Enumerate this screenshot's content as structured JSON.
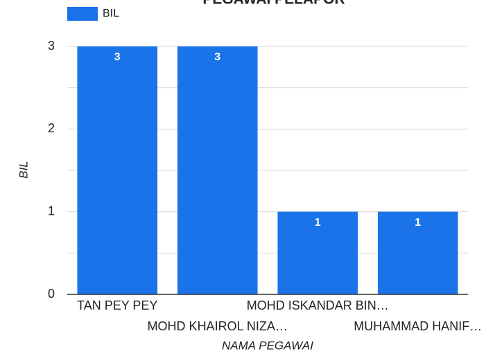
{
  "chart_data": {
    "type": "bar",
    "title": "PEGAWAI PELAPOR",
    "categories": [
      "TAN PEY PEY",
      "MOHD KHAIROL NIZA…",
      "MOHD ISKANDAR BIN…",
      "MUHAMMAD HANIF…"
    ],
    "series": [
      {
        "name": "BIL",
        "color": "#1a73e8",
        "values": [
          3,
          3,
          1,
          1
        ]
      }
    ],
    "xlabel": "NAMA PEGAWAI",
    "ylabel": "BIL",
    "ylim": [
      0,
      3
    ],
    "yticks": [
      0,
      1,
      2,
      3
    ],
    "yminor": [
      0.5,
      1.5,
      2.5
    ],
    "grid": true,
    "legend": "top-left"
  }
}
